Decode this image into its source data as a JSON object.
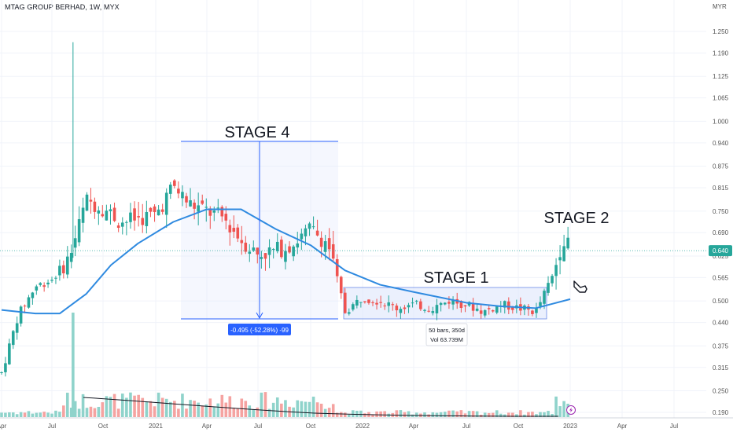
{
  "header": {
    "title": "MTAG GROUP BERHAD, 1W, MYX"
  },
  "price_axis": {
    "currency": "MYR"
  },
  "last_price_label": "0.640",
  "measure_box": {
    "label": "-0.495 (-52.28%) -99"
  },
  "range_box": {
    "bars": "50 bars, 350d",
    "vol": "Vol 63.739M"
  },
  "annotations": [
    "STAGE 4",
    "STAGE 1",
    "STAGE 2"
  ],
  "colors": {
    "up": "#26a69a",
    "down": "#ef5350",
    "ma": "#2f8ae0",
    "vol_up": "#8fd3cb",
    "vol_down": "#f5a3a1",
    "vol_ma": "#131722",
    "measure": "#2962ff"
  },
  "chart_data": {
    "type": "candlestick",
    "title": "MTAG GROUP BERHAD, 1W, MYX",
    "y_unit": "MYR",
    "y_ticks": [
      "1.250",
      "1.190",
      "1.125",
      "1.065",
      "1.000",
      "0.940",
      "0.875",
      "0.815",
      "0.750",
      "0.690",
      "0.625",
      "0.565",
      "0.500",
      "0.440",
      "0.375",
      "0.315",
      "0.250",
      "0.190"
    ],
    "x_ticks": [
      "Apr",
      "Jul",
      "Oct",
      "2021",
      "Apr",
      "Jul",
      "Oct",
      "2022",
      "Apr",
      "Jul",
      "Oct",
      "2023",
      "Apr",
      "Jul"
    ],
    "price_keypoints": [
      [
        "2020-04-01",
        0.3
      ],
      [
        "2020-05-01",
        0.46
      ],
      [
        "2020-06-01",
        0.54
      ],
      [
        "2020-07-01",
        0.56
      ],
      [
        "2020-08-01",
        0.62
      ],
      [
        "2020-09-01",
        0.78
      ],
      [
        "2020-10-01",
        0.76
      ],
      [
        "2020-11-01",
        0.72
      ],
      [
        "2020-12-01",
        0.73
      ],
      [
        "2021-01-01",
        0.74
      ],
      [
        "2021-02-01",
        0.82
      ],
      [
        "2021-03-01",
        0.77
      ],
      [
        "2021-04-01",
        0.75
      ],
      [
        "2021-05-01",
        0.73
      ],
      [
        "2021-06-01",
        0.67
      ],
      [
        "2021-07-01",
        0.63
      ],
      [
        "2021-08-01",
        0.64
      ],
      [
        "2021-09-01",
        0.66
      ],
      [
        "2021-10-01",
        0.7
      ],
      [
        "2021-11-01",
        0.66
      ],
      [
        "2021-12-01",
        0.47
      ],
      [
        "2022-01-01",
        0.51
      ],
      [
        "2022-02-01",
        0.5
      ],
      [
        "2022-03-01",
        0.48
      ],
      [
        "2022-04-01",
        0.49
      ],
      [
        "2022-05-01",
        0.48
      ],
      [
        "2022-06-01",
        0.5
      ],
      [
        "2022-07-01",
        0.49
      ],
      [
        "2022-08-01",
        0.47
      ],
      [
        "2022-09-01",
        0.49
      ],
      [
        "2022-10-01",
        0.48
      ],
      [
        "2022-11-01",
        0.47
      ],
      [
        "2022-12-01",
        0.57
      ],
      [
        "2022-12-20",
        0.68
      ],
      [
        "2023-01-01",
        0.64
      ]
    ],
    "series": [
      {
        "name": "30-week MA (estimated)",
        "points": [
          [
            "2020-04-01",
            0.475
          ],
          [
            "2020-06-01",
            0.465
          ],
          [
            "2020-07-15",
            0.465
          ],
          [
            "2020-09-01",
            0.52
          ],
          [
            "2020-10-15",
            0.6
          ],
          [
            "2020-12-01",
            0.66
          ],
          [
            "2021-02-01",
            0.72
          ],
          [
            "2021-04-01",
            0.755
          ],
          [
            "2021-06-01",
            0.755
          ],
          [
            "2021-08-01",
            0.7
          ],
          [
            "2021-10-01",
            0.655
          ],
          [
            "2021-12-01",
            0.585
          ],
          [
            "2022-02-01",
            0.545
          ],
          [
            "2022-04-01",
            0.525
          ],
          [
            "2022-07-01",
            0.495
          ],
          [
            "2022-09-01",
            0.485
          ],
          [
            "2022-11-01",
            0.48
          ],
          [
            "2023-01-01",
            0.505
          ]
        ]
      }
    ],
    "ylim": [
      0.18,
      1.28
    ]
  }
}
